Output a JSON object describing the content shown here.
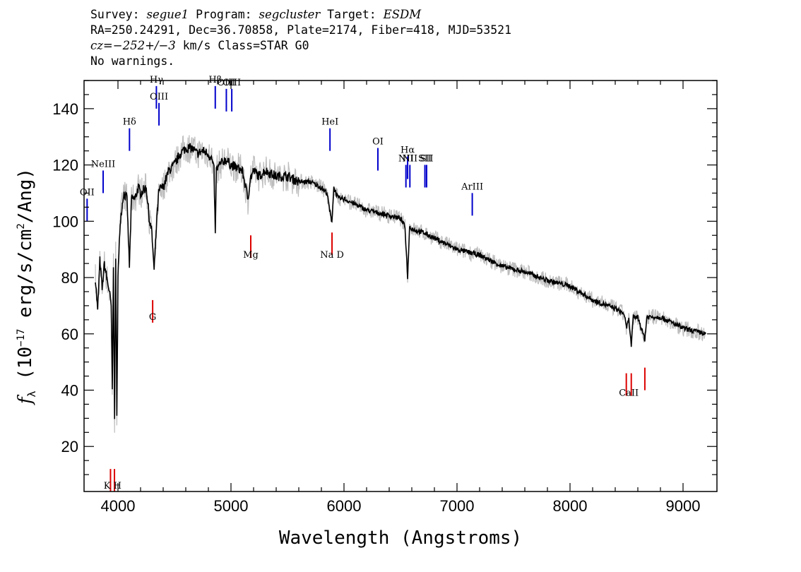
{
  "header": {
    "survey_label": "Survey:",
    "survey": "segue1",
    "program_label": "Program:",
    "program": "segcluster",
    "target_label": "Target:",
    "target": "ESDM",
    "line2": "RA=250.24291, Dec=36.70858, Plate=2174, Fiber=418, MJD=53521",
    "cz": "cz=−252+/−3",
    "line3_rest": " km/s Class=STAR G0",
    "line4": "No warnings."
  },
  "chart_data": {
    "type": "line",
    "xlabel": "Wavelength (Angstroms)",
    "ylabel": "f_λ (10^-17 erg/s/cm^2/Ang)",
    "xlim": [
      3700,
      9300
    ],
    "ylim": [
      4,
      150
    ],
    "x_ticks": [
      4000,
      5000,
      6000,
      7000,
      8000,
      9000
    ],
    "y_ticks": [
      20,
      40,
      60,
      80,
      100,
      120,
      140
    ],
    "colors": {
      "spectrum": "#000000",
      "error": "#bdbdbd",
      "emission": "#0000cc",
      "absorption": "#dd0000"
    },
    "series": [
      {
        "x": [
          3800,
          3820,
          3840,
          3860,
          3880,
          3900,
          3920,
          3940,
          3950,
          3960,
          3970,
          3980,
          3990,
          4000,
          4020,
          4050,
          4080,
          4101,
          4120,
          4150,
          4180,
          4200,
          4250,
          4280,
          4300,
          4320,
          4340,
          4360,
          4380,
          4400,
          4450,
          4500,
          4550,
          4600,
          4650,
          4700,
          4750,
          4800,
          4830,
          4850,
          4861,
          4870,
          4900,
          4950,
          5000,
          5050,
          5100,
          5150,
          5170,
          5200,
          5250,
          5300,
          5400,
          5500,
          5600,
          5700,
          5800,
          5850,
          5880,
          5893,
          5910,
          5950,
          6000,
          6100,
          6200,
          6300,
          6400,
          6500,
          6540,
          6563,
          6580,
          6620,
          6700,
          6800,
          6900,
          7000,
          7200,
          7400,
          7600,
          7800,
          8000,
          8200,
          8400,
          8480,
          8498,
          8520,
          8542,
          8560,
          8600,
          8662,
          8680,
          8800,
          9000,
          9200
        ],
        "y": [
          80,
          68,
          86,
          76,
          85,
          80,
          76,
          70,
          40,
          85,
          28,
          88,
          30,
          80,
          100,
          110,
          108,
          84,
          108,
          108,
          112,
          110,
          112,
          100,
          96,
          82,
          98,
          110,
          112,
          112,
          118,
          120,
          124,
          126,
          126,
          124,
          125,
          124,
          122,
          118,
          95,
          118,
          120,
          122,
          120,
          119,
          118,
          108,
          115,
          118,
          116,
          118,
          116,
          116,
          114,
          114,
          112,
          110,
          102,
          100,
          112,
          108,
          108,
          106,
          104,
          103,
          102,
          101,
          98,
          80,
          98,
          97,
          96,
          94,
          92,
          90,
          88,
          84,
          82,
          79,
          77,
          72,
          69,
          67,
          62,
          65,
          56,
          66,
          66,
          58,
          66,
          66,
          62,
          60
        ]
      }
    ],
    "emission_lines": [
      {
        "label": "OII",
        "x": 3727,
        "y": 100
      },
      {
        "label": "NeIII",
        "x": 3869,
        "y": 110
      },
      {
        "label": "Hδ",
        "x": 4102,
        "y": 125
      },
      {
        "label": "Hγ",
        "x": 4340,
        "y": 140
      },
      {
        "label": "OIII",
        "x": 4363,
        "y": 134
      },
      {
        "label": "Hβ",
        "x": 4861,
        "y": 140
      },
      {
        "label": "OIII",
        "x": 4959,
        "y": 139
      },
      {
        "label": "OIII",
        "x": 5007,
        "y": 139
      },
      {
        "label": "HeI",
        "x": 5876,
        "y": 125
      },
      {
        "label": "OI",
        "x": 6300,
        "y": 118
      },
      {
        "label": "NII",
        "x": 6548,
        "y": 112
      },
      {
        "label": "Hα",
        "x": 6563,
        "y": 115
      },
      {
        "label": "NII",
        "x": 6583,
        "y": 112
      },
      {
        "label": "SII",
        "x": 6716,
        "y": 112
      },
      {
        "label": "SII",
        "x": 6731,
        "y": 112
      },
      {
        "label": "ArIII",
        "x": 7135,
        "y": 102
      }
    ],
    "absorption_lines": [
      {
        "label": "K",
        "x": 3934,
        "y": 12
      },
      {
        "label": "H",
        "x": 3969,
        "y": 12
      },
      {
        "label": "G",
        "x": 4307,
        "y": 72
      },
      {
        "label": "Mg",
        "x": 5175,
        "y": 95
      },
      {
        "label": "Na D",
        "x": 5894,
        "y": 96
      },
      {
        "label": "CaII",
        "x": 8498,
        "y": 46
      },
      {
        "label": "CaII",
        "x": 8542,
        "y": 46
      },
      {
        "label": "CaII",
        "x": 8662,
        "y": 48
      }
    ],
    "absorption_text": [
      {
        "label": "K H",
        "x": 3952,
        "y": 5
      },
      {
        "label": "G",
        "x": 4307,
        "y": 65
      },
      {
        "label": "Mg",
        "x": 5175,
        "y": 87
      },
      {
        "label": "Na D",
        "x": 5894,
        "y": 87
      },
      {
        "label": "CaII",
        "x": 8520,
        "y": 38
      }
    ]
  }
}
